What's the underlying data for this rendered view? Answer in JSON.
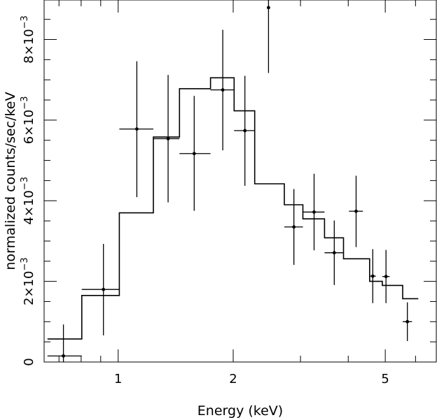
{
  "chart_data": {
    "type": "scatter",
    "xscale": "log",
    "xlabel": "Energy (keV)",
    "ylabel": "normalized counts/sec/keV",
    "xlim": [
      0.64,
      6.8
    ],
    "ylim": [
      0,
      0.00898
    ],
    "x_ticks": [
      {
        "value": 1,
        "label": "1"
      },
      {
        "value": 2,
        "label": "2"
      },
      {
        "value": 5,
        "label": "5"
      }
    ],
    "y_ticks": [
      {
        "value": 0,
        "label": "0"
      },
      {
        "value": 0.002,
        "label": "2×10",
        "exp": "−3"
      },
      {
        "value": 0.004,
        "label": "4×10",
        "exp": "−3"
      },
      {
        "value": 0.006,
        "label": "6×10",
        "exp": "−3"
      },
      {
        "value": 0.008,
        "label": "8×10",
        "exp": "−3"
      }
    ],
    "grid": false,
    "data_points": [
      {
        "x": 0.719,
        "y": 0.00015,
        "xerr": [
          0.653,
          0.803
        ],
        "yerr": [
          0.0,
          0.00093
        ]
      },
      {
        "x": 0.915,
        "y": 0.0018,
        "xerr": [
          0.803,
          1.007
        ],
        "yerr": [
          0.00066,
          0.00293
        ]
      },
      {
        "x": 1.119,
        "y": 0.00578,
        "xerr": [
          1.007,
          1.236
        ],
        "yerr": [
          0.00409,
          0.00746
        ]
      },
      {
        "x": 1.351,
        "y": 0.00554,
        "xerr": [
          1.236,
          1.447
        ],
        "yerr": [
          0.00396,
          0.00712
        ]
      },
      {
        "x": 1.581,
        "y": 0.00517,
        "xerr": [
          1.447,
          1.744
        ],
        "yerr": [
          0.00375,
          0.0066
        ]
      },
      {
        "x": 1.878,
        "y": 0.00675,
        "xerr": [
          1.744,
          2.011
        ],
        "yerr": [
          0.00525,
          0.00824
        ]
      },
      {
        "x": 2.146,
        "y": 0.00574,
        "xerr": [
          2.011,
          2.277
        ],
        "yerr": [
          0.00437,
          0.0071
        ]
      },
      {
        "x": 2.474,
        "y": 0.00879,
        "xerr": [
          2.471,
          2.479
        ],
        "yerr": [
          0.00717,
          0.0104
        ]
      },
      {
        "x": 2.883,
        "y": 0.00335,
        "xerr": [
          2.721,
          3.044
        ],
        "yerr": [
          0.00241,
          0.00429
        ]
      },
      {
        "x": 3.256,
        "y": 0.00372,
        "xerr": [
          3.044,
          3.468
        ],
        "yerr": [
          0.00277,
          0.00467
        ]
      },
      {
        "x": 3.677,
        "y": 0.00271,
        "xerr": [
          3.468,
          3.888
        ],
        "yerr": [
          0.00191,
          0.00351
        ]
      },
      {
        "x": 4.194,
        "y": 0.00374,
        "xerr": [
          4.018,
          4.37
        ],
        "yerr": [
          0.00285,
          0.00462
        ]
      },
      {
        "x": 4.637,
        "y": 0.00213,
        "xerr": [
          4.55,
          4.724
        ],
        "yerr": [
          0.00146,
          0.0028
        ]
      },
      {
        "x": 5.022,
        "y": 0.00212,
        "xerr": [
          4.911,
          5.135
        ],
        "yerr": [
          0.00146,
          0.00278
        ]
      },
      {
        "x": 5.712,
        "y": 0.001,
        "xerr": [
          5.554,
          5.874
        ],
        "yerr": [
          0.00052,
          0.00148
        ]
      }
    ],
    "model_steps": [
      {
        "x0": 0.653,
        "x1": 0.803,
        "y": 0.00057
      },
      {
        "x0": 0.803,
        "x1": 1.007,
        "y": 0.00165
      },
      {
        "x0": 1.007,
        "x1": 1.236,
        "y": 0.0037
      },
      {
        "x0": 1.236,
        "x1": 1.447,
        "y": 0.00558
      },
      {
        "x0": 1.447,
        "x1": 1.744,
        "y": 0.00678
      },
      {
        "x0": 1.744,
        "x1": 2.011,
        "y": 0.00705
      },
      {
        "x0": 2.011,
        "x1": 2.277,
        "y": 0.00623
      },
      {
        "x0": 2.277,
        "x1": 2.721,
        "y": 0.00442
      },
      {
        "x0": 2.721,
        "x1": 3.044,
        "y": 0.0039
      },
      {
        "x0": 3.044,
        "x1": 3.468,
        "y": 0.00355
      },
      {
        "x0": 3.468,
        "x1": 3.888,
        "y": 0.00308
      },
      {
        "x0": 3.888,
        "x1": 4.55,
        "y": 0.00256
      },
      {
        "x0": 4.55,
        "x1": 4.911,
        "y": 0.002
      },
      {
        "x0": 4.911,
        "x1": 5.554,
        "y": 0.0019
      },
      {
        "x0": 5.554,
        "x1": 6.1,
        "y": 0.00157
      }
    ]
  }
}
